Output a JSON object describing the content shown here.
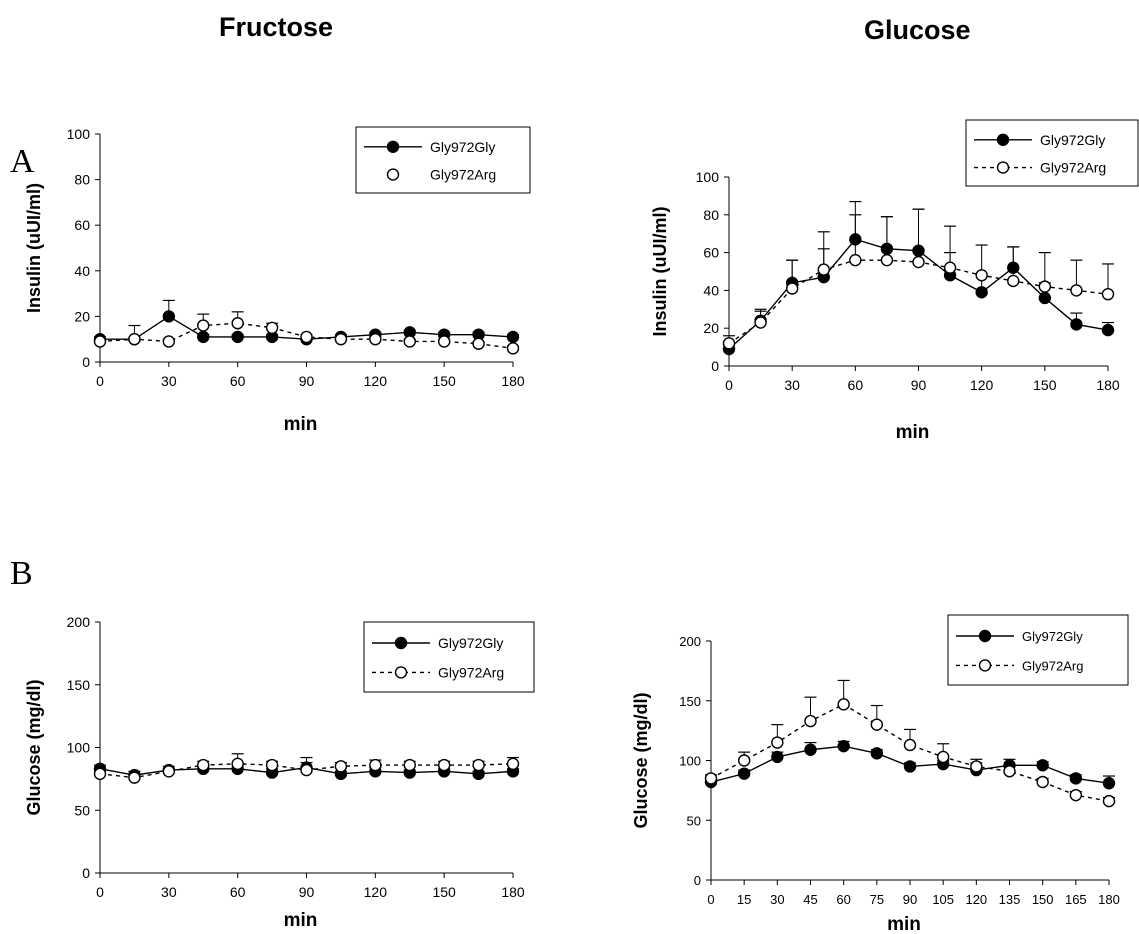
{
  "titles": {
    "left": "Fructose",
    "right": "Glucose"
  },
  "panel_labels": {
    "a": "A",
    "b": "B"
  },
  "chart_data": [
    {
      "id": "fructose-insulin",
      "type": "line",
      "title": "",
      "ylabel": "Insulin (uUI/ml)",
      "xlabel": "min",
      "ylim": [
        0,
        100
      ],
      "yticks": [
        0,
        20,
        40,
        60,
        80,
        100
      ],
      "xlim": [
        0,
        180
      ],
      "xticks": [
        0,
        30,
        60,
        90,
        120,
        150,
        180
      ],
      "grid": false,
      "legend_position": "top-right",
      "legend_style": "marker-only-second",
      "x": [
        0,
        15,
        30,
        45,
        60,
        75,
        90,
        105,
        120,
        135,
        150,
        165,
        180
      ],
      "series": [
        {
          "name": "Gly972Gly",
          "style": "solid",
          "marker": "filled-circle",
          "values": [
            10,
            10,
            20,
            11,
            11,
            11,
            10,
            11,
            12,
            13,
            12,
            12,
            11
          ],
          "errors": [
            1,
            1,
            7,
            1,
            1,
            1,
            1,
            1,
            1,
            1,
            1,
            1,
            1
          ]
        },
        {
          "name": "Gly972Arg",
          "style": "dashed",
          "marker": "open-circle",
          "values": [
            9,
            10,
            9,
            16,
            17,
            15,
            11,
            10,
            10,
            9,
            9,
            8,
            6
          ],
          "errors": [
            1,
            6,
            1,
            5,
            5,
            2,
            1,
            1,
            1,
            1,
            1,
            1,
            1
          ]
        }
      ]
    },
    {
      "id": "glucose-insulin",
      "type": "line",
      "title": "",
      "ylabel": "Insulin (uUI/ml)",
      "xlabel": "min",
      "ylim": [
        0,
        100
      ],
      "yticks": [
        0,
        20,
        40,
        60,
        80,
        100
      ],
      "xlim": [
        0,
        180
      ],
      "xticks": [
        0,
        30,
        60,
        90,
        120,
        150,
        180
      ],
      "grid": false,
      "legend_position": "top-right",
      "legend_style": "line-and-marker",
      "x": [
        0,
        15,
        30,
        45,
        60,
        75,
        90,
        105,
        120,
        135,
        150,
        165,
        180
      ],
      "series": [
        {
          "name": "Gly972Gly",
          "style": "solid",
          "marker": "filled-circle",
          "values": [
            9,
            24,
            44,
            47,
            67,
            62,
            61,
            48,
            39,
            52,
            36,
            22,
            19
          ],
          "errors": [
            2,
            5,
            12,
            15,
            20,
            17,
            22,
            12,
            9,
            11,
            8,
            6,
            4
          ]
        },
        {
          "name": "Gly972Arg",
          "style": "dashed",
          "marker": "open-circle",
          "values": [
            12,
            23,
            41,
            51,
            56,
            56,
            55,
            52,
            48,
            45,
            42,
            40,
            38
          ],
          "errors": [
            4,
            7,
            15,
            20,
            24,
            23,
            28,
            22,
            16,
            18,
            18,
            16,
            16
          ]
        }
      ]
    },
    {
      "id": "fructose-glucose",
      "type": "line",
      "title": "",
      "ylabel": "Glucose (mg/dl)",
      "xlabel": "min",
      "ylim": [
        0,
        200
      ],
      "yticks": [
        0,
        50,
        100,
        150,
        200
      ],
      "xlim": [
        0,
        180
      ],
      "xticks": [
        0,
        30,
        60,
        90,
        120,
        150,
        180
      ],
      "grid": false,
      "legend_position": "top-right",
      "legend_style": "line-and-marker",
      "x": [
        0,
        15,
        30,
        45,
        60,
        75,
        90,
        105,
        120,
        135,
        150,
        165,
        180
      ],
      "series": [
        {
          "name": "Gly972Gly",
          "style": "solid",
          "marker": "filled-circle",
          "values": [
            83,
            78,
            82,
            83,
            83,
            80,
            84,
            79,
            81,
            80,
            81,
            79,
            81
          ],
          "errors": [
            3,
            3,
            3,
            2,
            3,
            3,
            4,
            2,
            3,
            2,
            2,
            2,
            2
          ]
        },
        {
          "name": "Gly972Arg",
          "style": "dashed",
          "marker": "open-circle",
          "values": [
            79,
            76,
            81,
            86,
            87,
            86,
            82,
            85,
            86,
            86,
            86,
            86,
            87
          ],
          "errors": [
            3,
            2,
            2,
            3,
            8,
            3,
            10,
            3,
            4,
            3,
            3,
            3,
            5
          ]
        }
      ]
    },
    {
      "id": "glucose-glucose",
      "type": "line",
      "title": "",
      "ylabel": "Glucose (mg/dl)",
      "xlabel": "min",
      "ylim": [
        0,
        200
      ],
      "yticks": [
        0,
        50,
        100,
        150,
        200
      ],
      "xlim": [
        0,
        180
      ],
      "xticks": [
        0,
        15,
        30,
        45,
        60,
        75,
        90,
        105,
        120,
        135,
        150,
        165,
        180
      ],
      "grid": false,
      "legend_position": "top-right",
      "legend_style": "line-and-marker",
      "x": [
        0,
        15,
        30,
        45,
        60,
        75,
        90,
        105,
        120,
        135,
        150,
        165,
        180
      ],
      "series": [
        {
          "name": "Gly972Gly",
          "style": "solid",
          "marker": "filled-circle",
          "values": [
            82,
            89,
            103,
            109,
            112,
            106,
            95,
            97,
            92,
            96,
            96,
            85,
            81
          ],
          "errors": [
            3,
            3,
            4,
            6,
            4,
            3,
            3,
            3,
            6,
            5,
            3,
            3,
            6
          ]
        },
        {
          "name": "Gly972Arg",
          "style": "dashed",
          "marker": "open-circle",
          "values": [
            85,
            100,
            115,
            133,
            147,
            130,
            113,
            103,
            95,
            91,
            82,
            71,
            66
          ],
          "errors": [
            3,
            7,
            15,
            20,
            20,
            16,
            13,
            11,
            6,
            4,
            3,
            3,
            3
          ]
        }
      ]
    }
  ]
}
